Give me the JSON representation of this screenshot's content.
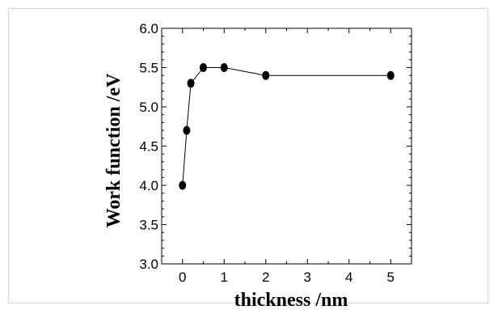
{
  "chart_data": {
    "type": "scatter",
    "title": "",
    "xlabel": "thickness /nm",
    "ylabel": "Work function /eV",
    "xlim": [
      -0.5,
      5.5
    ],
    "ylim": [
      3.0,
      6.0
    ],
    "xticks": [
      "0",
      "1",
      "2",
      "3",
      "4",
      "5"
    ],
    "yticks": [
      "3.0",
      "3.5",
      "4.0",
      "4.5",
      "5.0",
      "5.5",
      "6.0"
    ],
    "series": [
      {
        "x": [
          0,
          0.1,
          0.2,
          0.5,
          1,
          2,
          5
        ],
        "y": [
          4.0,
          4.7,
          5.3,
          5.5,
          5.5,
          5.4,
          5.4
        ],
        "style": "line-with-markers",
        "marker_color": "#000000"
      }
    ]
  }
}
